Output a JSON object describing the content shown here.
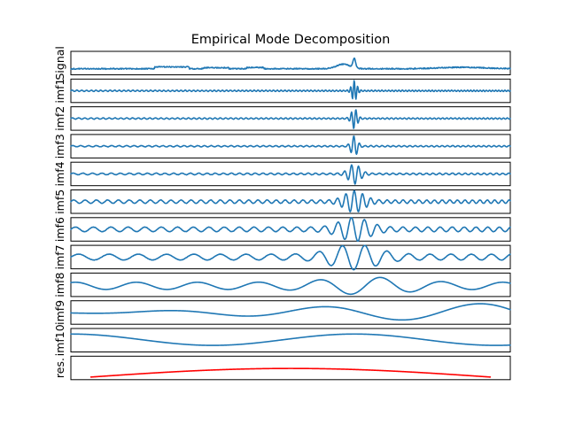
{
  "chart_data": {
    "type": "line",
    "title": "Empirical Mode Decomposition",
    "x_range": [
      0,
      1
    ],
    "grid": false,
    "panels": [
      {
        "label": "Signal",
        "color": "#1f77b4",
        "kind": "signal"
      },
      {
        "label": "imf1",
        "color": "#1f77b4",
        "kind": "burst",
        "base_amp": 0.06,
        "burst_amp": 0.95,
        "cycles": 90,
        "burst_width": 0.008
      },
      {
        "label": "imf2",
        "color": "#1f77b4",
        "kind": "burst",
        "base_amp": 0.06,
        "burst_amp": 0.95,
        "cycles": 70,
        "burst_width": 0.009
      },
      {
        "label": "imf3",
        "color": "#1f77b4",
        "kind": "burst",
        "base_amp": 0.06,
        "burst_amp": 0.95,
        "cycles": 55,
        "burst_width": 0.01
      },
      {
        "label": "imf4",
        "color": "#1f77b4",
        "kind": "burst",
        "base_amp": 0.08,
        "burst_amp": 0.9,
        "cycles": 45,
        "burst_width": 0.018
      },
      {
        "label": "imf5",
        "color": "#1f77b4",
        "kind": "burst",
        "base_amp": 0.16,
        "burst_amp": 0.9,
        "cycles": 38,
        "burst_width": 0.03
      },
      {
        "label": "imf6",
        "color": "#1f77b4",
        "kind": "burst",
        "base_amp": 0.22,
        "burst_amp": 0.95,
        "cycles": 24,
        "burst_width": 0.045
      },
      {
        "label": "imf7",
        "color": "#1f77b4",
        "kind": "burst",
        "base_amp": 0.28,
        "burst_amp": 0.95,
        "cycles": 14,
        "burst_width": 0.07
      },
      {
        "label": "imf8",
        "color": "#1f77b4",
        "kind": "imf8"
      },
      {
        "label": "imf9",
        "color": "#1f77b4",
        "kind": "imf9"
      },
      {
        "label": "imf10",
        "color": "#1f77b4",
        "kind": "imf10"
      },
      {
        "label": "res.",
        "color": "#ff0000",
        "kind": "residual"
      }
    ]
  }
}
